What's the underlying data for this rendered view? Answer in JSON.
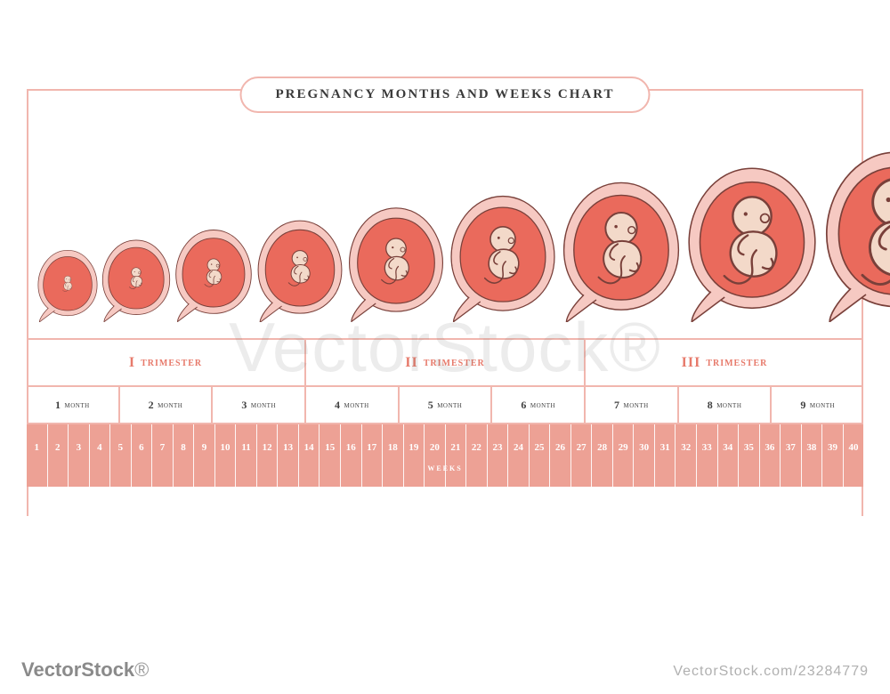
{
  "title": "PREGNANCY MONTHS AND WEEKS CHART",
  "colors": {
    "line": "#f1b6ae",
    "accent": "#e77a6b",
    "ruler_bg": "#eda195",
    "womb_outer": "#f6c9c2",
    "womb_inner": "#ea6a5c",
    "fetus_skin": "#f3d9c9",
    "fetus_stroke": "#79403a",
    "background": "#ffffff",
    "text_dark": "#3a3a3a"
  },
  "typography": {
    "title_fontsize": 15,
    "title_letter_spacing": 2,
    "trimester_fontsize": 14,
    "month_fontsize": 10,
    "week_fontsize": 11,
    "weeks_label_fontsize": 11
  },
  "stages": [
    {
      "month": 1,
      "size": 72,
      "fetus_scale": 0.3
    },
    {
      "month": 2,
      "size": 82,
      "fetus_scale": 0.36
    },
    {
      "month": 3,
      "size": 92,
      "fetus_scale": 0.42
    },
    {
      "month": 4,
      "size": 102,
      "fetus_scale": 0.48
    },
    {
      "month": 5,
      "size": 114,
      "fetus_scale": 0.55
    },
    {
      "month": 6,
      "size": 126,
      "fetus_scale": 0.62
    },
    {
      "month": 7,
      "size": 140,
      "fetus_scale": 0.7
    },
    {
      "month": 8,
      "size": 154,
      "fetus_scale": 0.78
    },
    {
      "month": 9,
      "size": 170,
      "fetus_scale": 0.86
    }
  ],
  "trimesters": [
    {
      "roman": "I",
      "label": "trimester"
    },
    {
      "roman": "II",
      "label": "trimester"
    },
    {
      "roman": "III",
      "label": "trimester"
    }
  ],
  "months": [
    {
      "num": "1",
      "label": "month"
    },
    {
      "num": "2",
      "label": "month"
    },
    {
      "num": "3",
      "label": "month"
    },
    {
      "num": "4",
      "label": "month"
    },
    {
      "num": "5",
      "label": "month"
    },
    {
      "num": "6",
      "label": "month"
    },
    {
      "num": "7",
      "label": "month"
    },
    {
      "num": "8",
      "label": "month"
    },
    {
      "num": "9",
      "label": "month"
    }
  ],
  "weeks": {
    "from": 1,
    "to": 40,
    "label": "weeks"
  },
  "watermark": "VectorStock®",
  "footer_left_brand": "VectorStock",
  "footer_left_suffix": "®",
  "footer_right": "VectorStock.com/23284779"
}
